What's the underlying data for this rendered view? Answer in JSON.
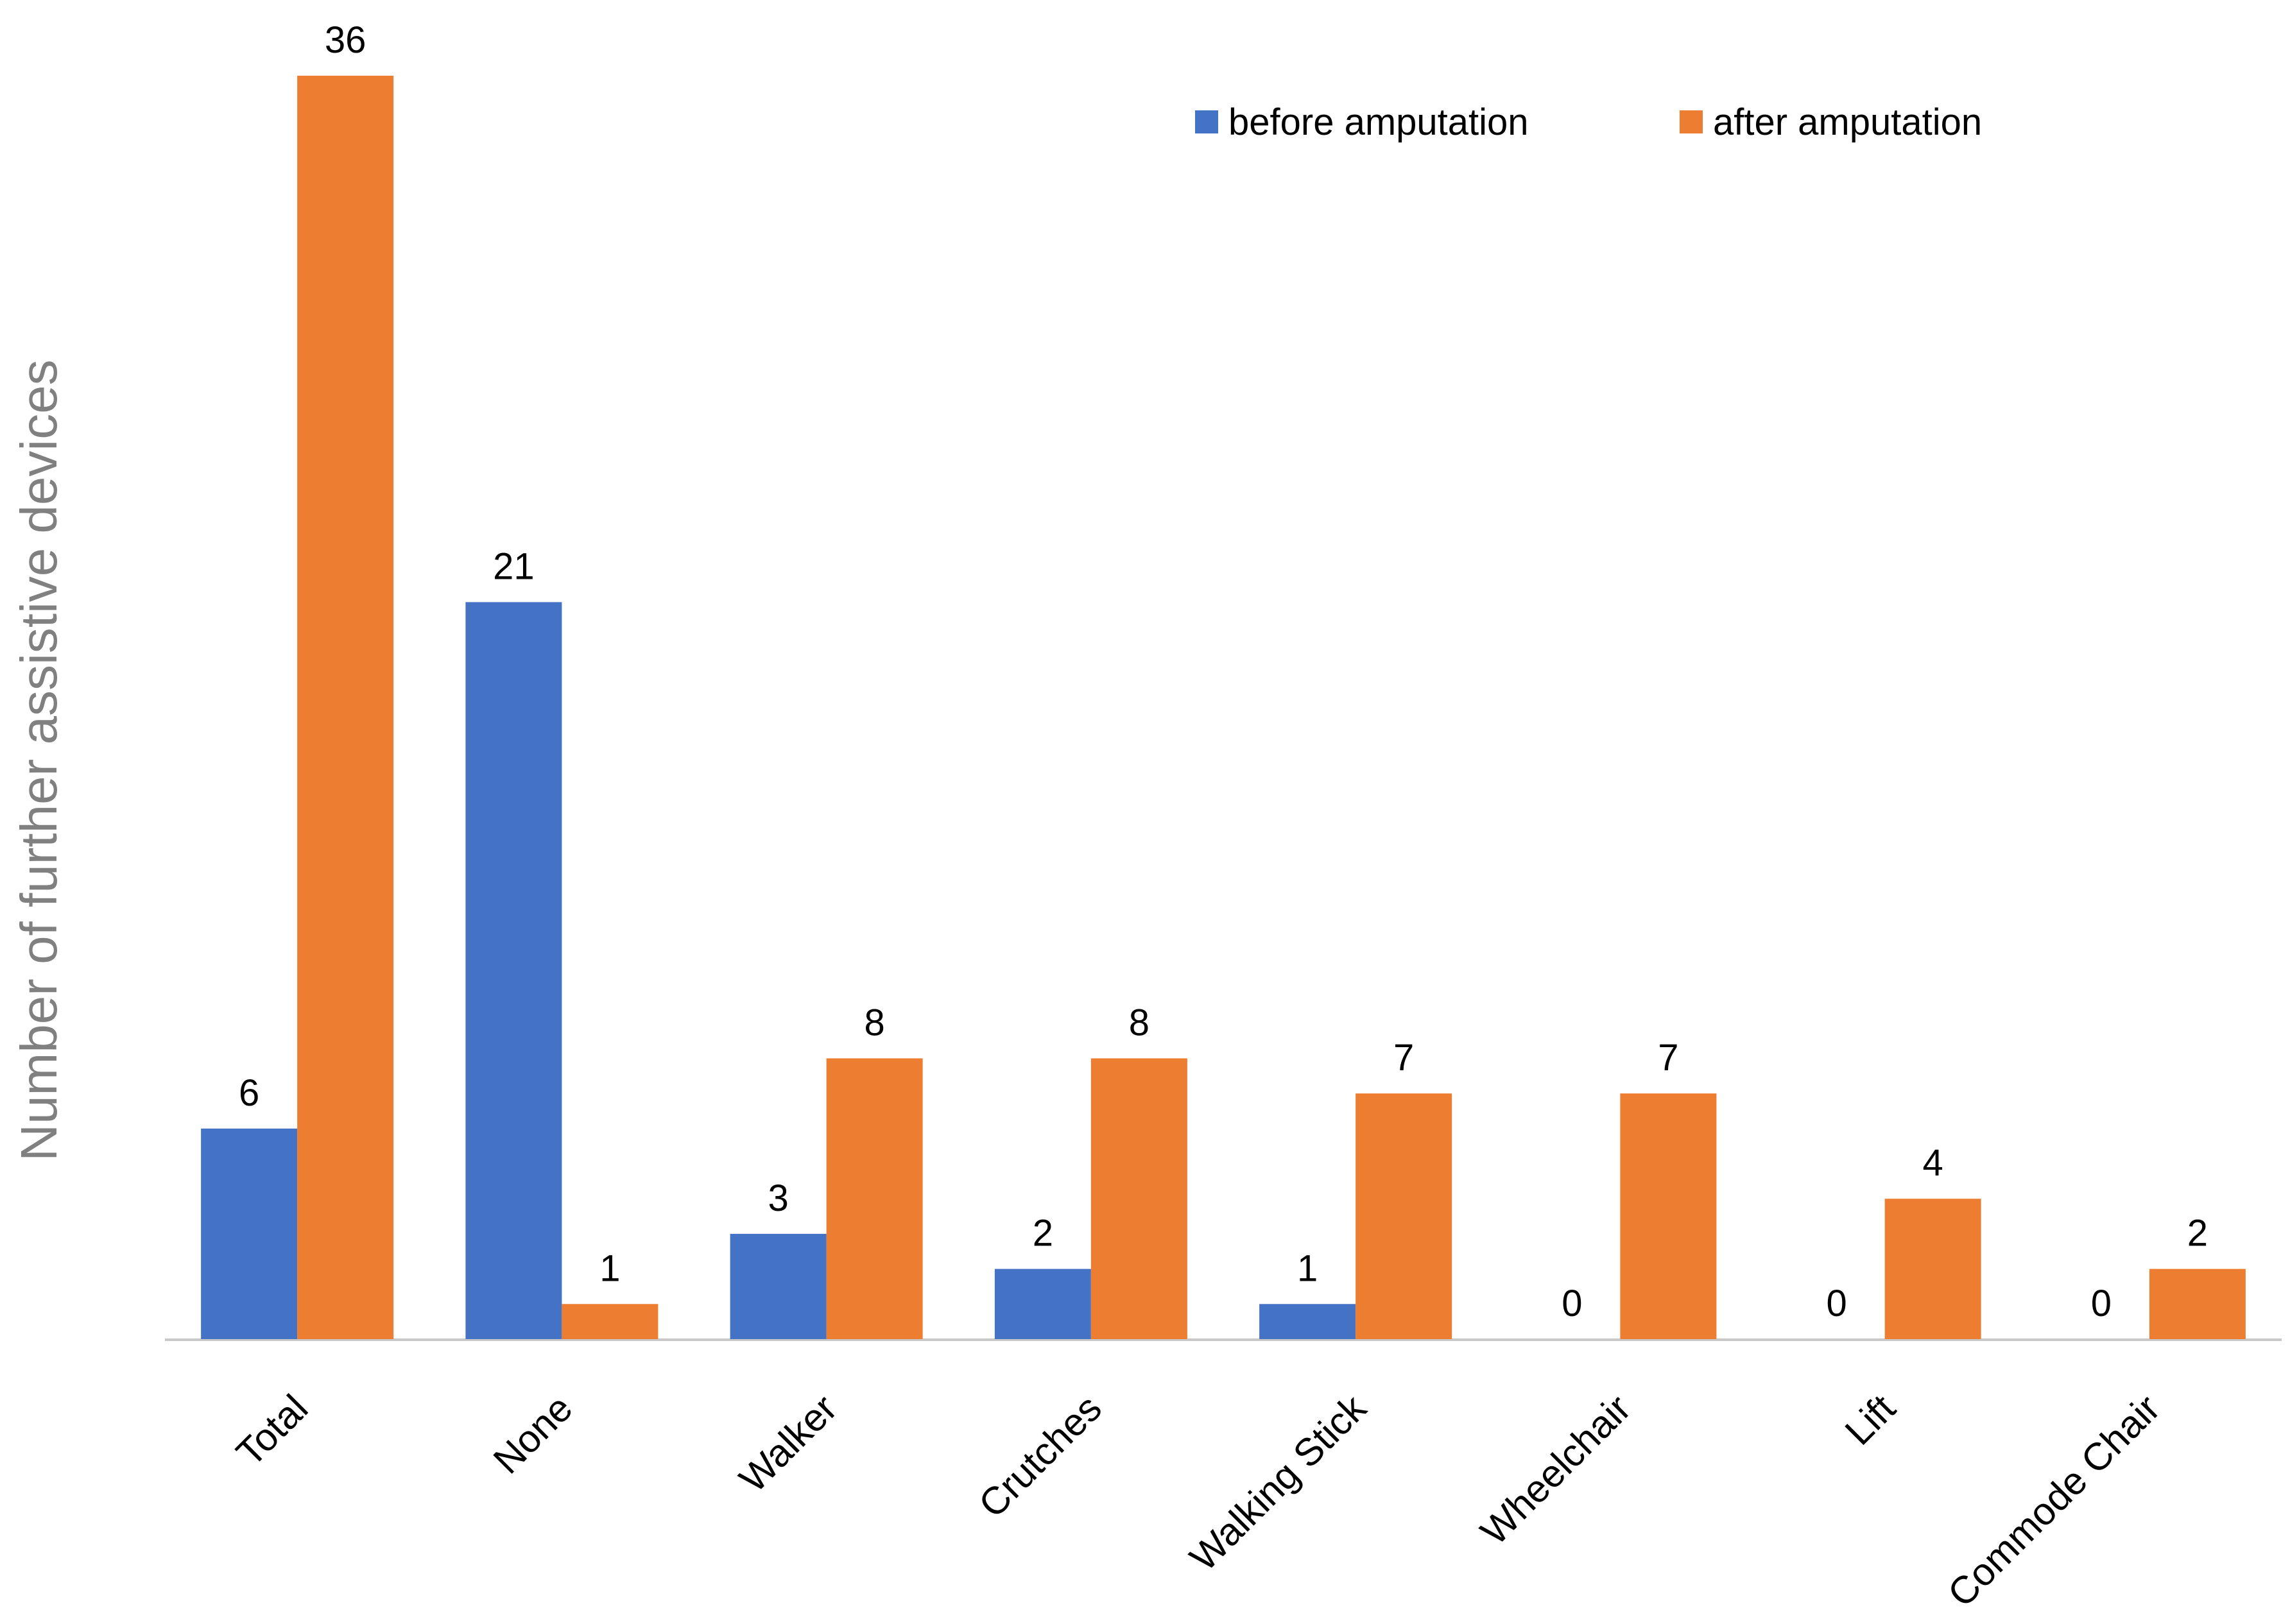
{
  "chart_data": {
    "type": "bar",
    "title": "",
    "xlabel": "",
    "ylabel": "Number of further assistive devices",
    "ylim": [
      0,
      36
    ],
    "grid": false,
    "legend_position": "top-right",
    "categories": [
      "Total",
      "None",
      "Walker",
      "Crutches",
      "Walking Stick",
      "Wheelchair",
      "Lift",
      "Commode Chair"
    ],
    "series": [
      {
        "name": "before amputation",
        "color": "#4472C4",
        "values": [
          6,
          21,
          3,
          2,
          1,
          0,
          0,
          0
        ]
      },
      {
        "name": "after amputation",
        "color": "#ED7D31",
        "values": [
          36,
          1,
          8,
          8,
          7,
          7,
          4,
          2
        ]
      }
    ]
  }
}
